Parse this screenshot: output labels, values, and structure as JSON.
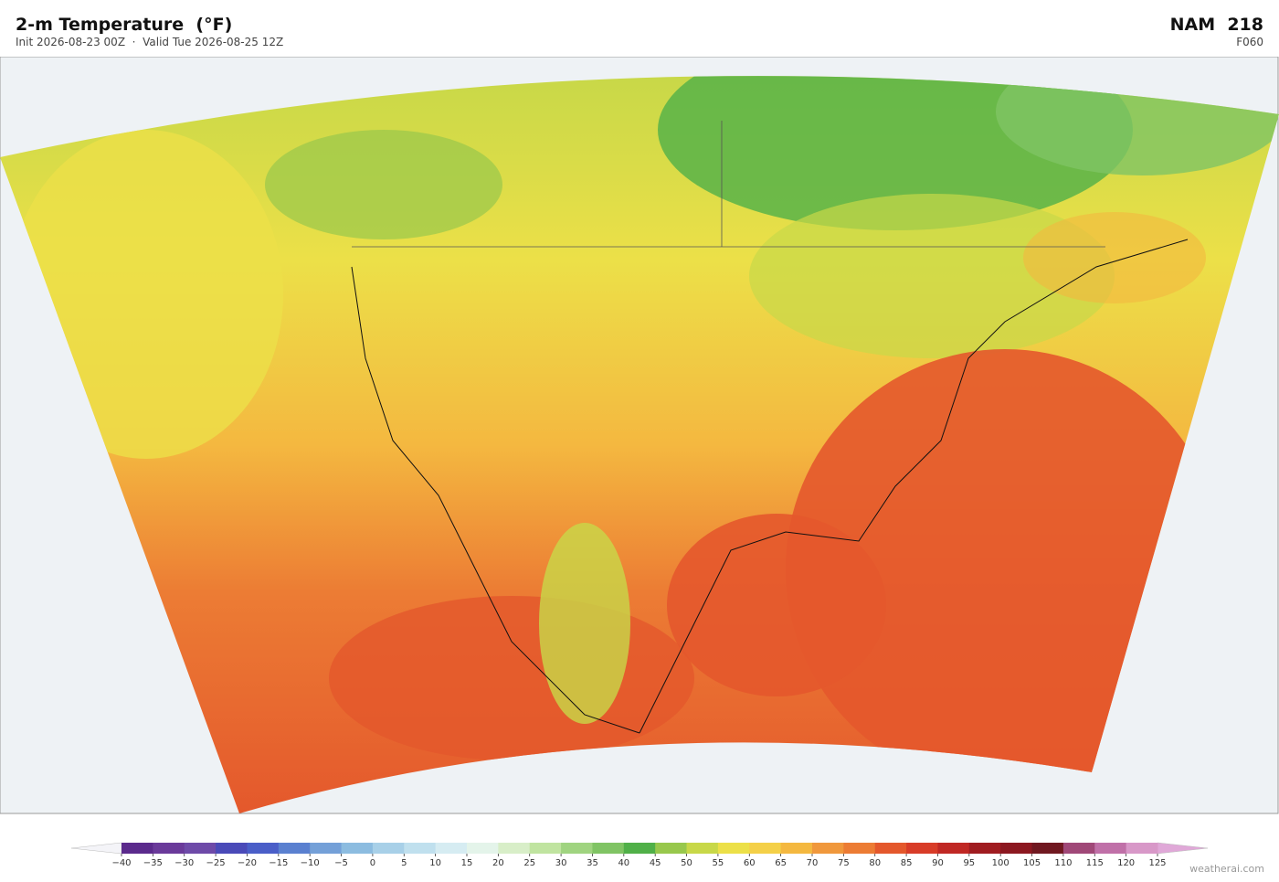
{
  "header": {
    "title": "2-m Temperature  (°F)",
    "subtitle": "Init 2026-08-23 00Z  ·  Valid Tue 2026-08-25 12Z",
    "model": "NAM  218",
    "forecast_hour": "F060"
  },
  "colorbar": {
    "ticks": [
      {
        "value": -40,
        "label": "−40"
      },
      {
        "value": -35,
        "label": "−35"
      },
      {
        "value": -30,
        "label": "−30"
      },
      {
        "value": -25,
        "label": "−25"
      },
      {
        "value": -20,
        "label": "−20"
      },
      {
        "value": -15,
        "label": "−15"
      },
      {
        "value": -10,
        "label": "−10"
      },
      {
        "value": -5,
        "label": "−5"
      },
      0,
      5,
      10,
      15,
      20,
      25,
      30,
      35,
      40,
      45,
      50,
      55,
      60,
      65,
      70,
      75,
      80,
      85,
      90,
      95,
      100,
      105,
      110,
      115,
      120,
      125
    ],
    "colors": [
      "#5b2a8c",
      "#6a3a9a",
      "#6e4aa8",
      "#4a4ab8",
      "#4a5ec8",
      "#5a80d0",
      "#74a0d8",
      "#8cbce0",
      "#a8d0e8",
      "#c0e0ee",
      "#d6ecf2",
      "#e4f4ea",
      "#d8eec8",
      "#c0e4a0",
      "#a0d480",
      "#80c464",
      "#50b048",
      "#98c84c",
      "#c8d848",
      "#ece048",
      "#f4d048",
      "#f4b840",
      "#f0983c",
      "#ec7c34",
      "#e4582c",
      "#d83c28",
      "#c02824",
      "#a01c20",
      "#8c1820",
      "#701820",
      "#a04878",
      "#c070a8",
      "#d898c8"
    ],
    "under": "#f4f4f8",
    "over": "#e0a8d8"
  },
  "watermark": "weatherai.com"
}
